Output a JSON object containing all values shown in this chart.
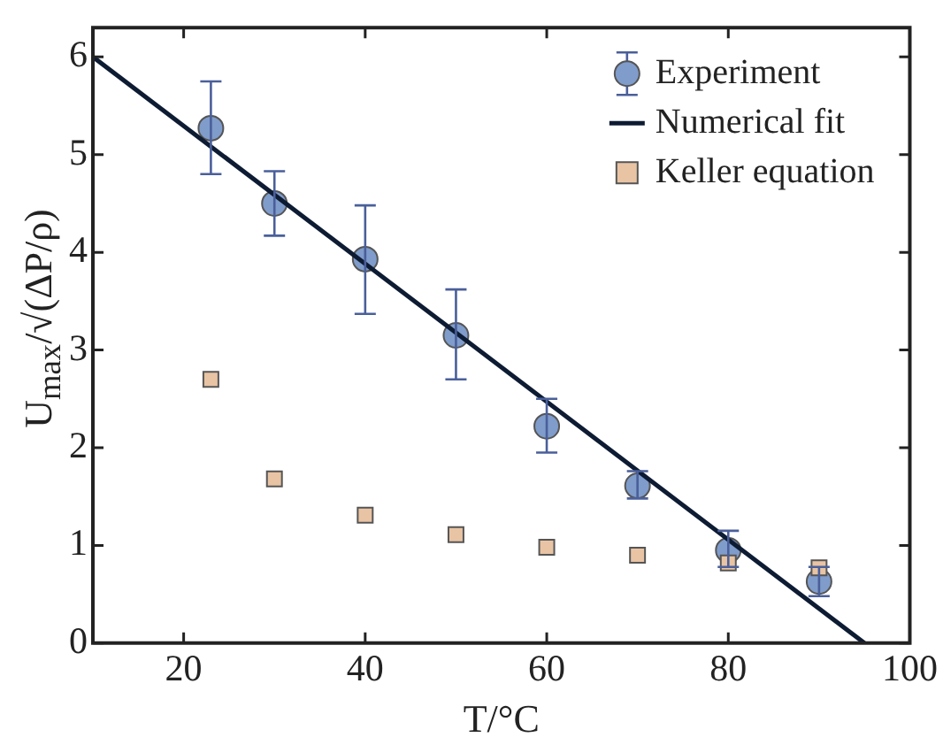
{
  "chart_data": {
    "type": "scatter",
    "xlabel": "T/°C",
    "ylabel": "U$_{max}$/√(ΔP/ρ)",
    "xlim": [
      10,
      100
    ],
    "ylim": [
      0,
      6.3
    ],
    "xticks": [
      20,
      40,
      60,
      80,
      100
    ],
    "yticks": [
      0,
      1,
      2,
      3,
      4,
      5,
      6
    ],
    "grid": false,
    "legend": "top right",
    "series": [
      {
        "name": "Experiment",
        "marker": "circle",
        "color": "#7f9ccb",
        "x": [
          23,
          30,
          40,
          50,
          60,
          70,
          80,
          90
        ],
        "values": [
          5.27,
          4.5,
          3.93,
          3.15,
          2.22,
          1.61,
          0.95,
          0.63
        ],
        "errors": [
          [
            4.8,
            5.75
          ],
          [
            4.17,
            4.83
          ],
          [
            3.37,
            4.48
          ],
          [
            2.7,
            3.62
          ],
          [
            1.95,
            2.5
          ],
          [
            1.48,
            1.76
          ],
          [
            0.78,
            1.15
          ],
          [
            0.48,
            0.78
          ]
        ]
      },
      {
        "name": "Numerical fit",
        "type": "line",
        "marker": "none",
        "line_style": "solid",
        "color": "#0d1b33",
        "x": [
          10,
          95
        ],
        "values": [
          6,
          0
        ]
      },
      {
        "name": "Keller equation",
        "marker": "square",
        "color": "#e8c4a4",
        "x": [
          23,
          30,
          40,
          50,
          60,
          70,
          80,
          90
        ],
        "values": [
          2.7,
          1.68,
          1.31,
          1.11,
          0.98,
          0.9,
          0.82,
          0.77
        ]
      }
    ]
  }
}
